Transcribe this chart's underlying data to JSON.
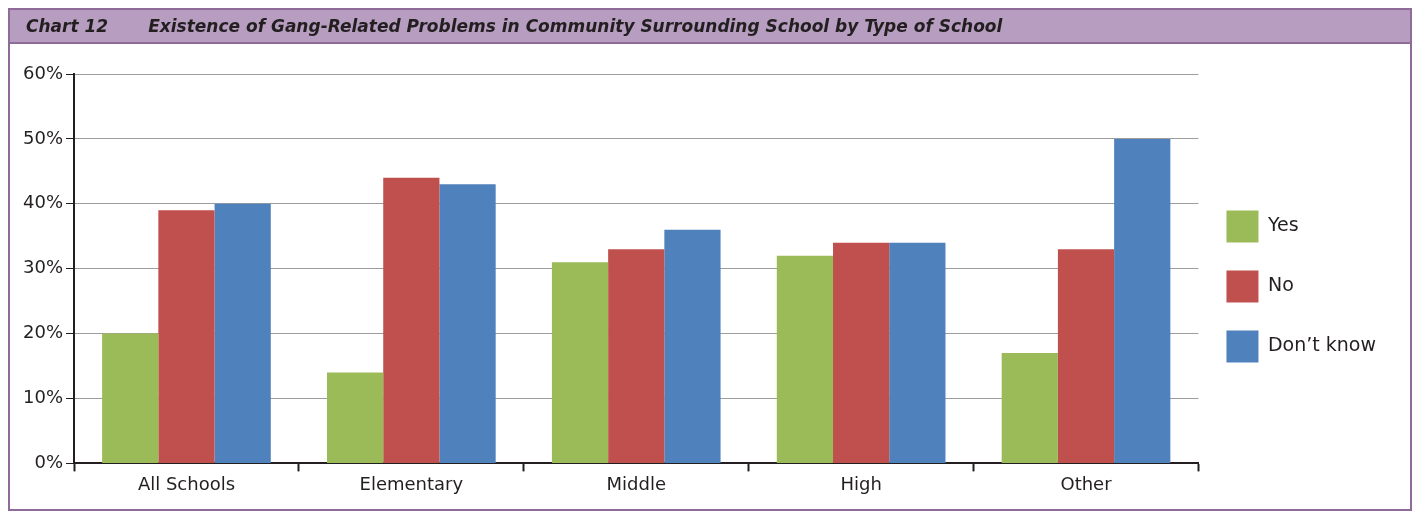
{
  "chart_data": {
    "type": "bar",
    "title": "Chart 12",
    "subtitle": "Existence of Gang-Related Problems in Community Surrounding School by Type of School",
    "categories": [
      "All Schools",
      "Elementary",
      "Middle",
      "High",
      "Other"
    ],
    "series": [
      {
        "name": "Yes",
        "color": "#9bbb59",
        "values": [
          20,
          14,
          31,
          32,
          17
        ]
      },
      {
        "name": "No",
        "color": "#c0504d",
        "values": [
          39,
          44,
          33,
          34,
          33
        ]
      },
      {
        "name": "Don’t know",
        "color": "#4f81bd",
        "values": [
          40,
          43,
          36,
          34,
          50
        ]
      }
    ],
    "ylim": [
      0,
      60
    ],
    "yticks": [
      {
        "value": 0,
        "label": "0%"
      },
      {
        "value": 10,
        "label": "10%"
      },
      {
        "value": 20,
        "label": "20%"
      },
      {
        "value": 30,
        "label": "30%"
      },
      {
        "value": 40,
        "label": "40%"
      },
      {
        "value": 50,
        "label": "50%"
      },
      {
        "value": 60,
        "label": "60%"
      }
    ],
    "grid": "y",
    "legend": "right"
  }
}
